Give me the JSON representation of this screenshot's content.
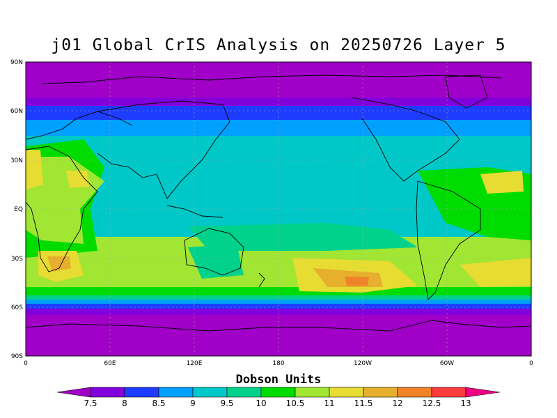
{
  "title": "j01 Global CrIS Analysis on 20250726 Layer 5",
  "lat_ticks": [
    "90N",
    "60N",
    "30N",
    "EQ",
    "30S",
    "60S",
    "90S"
  ],
  "lon_ticks": [
    "0",
    "60E",
    "120E",
    "180",
    "120W",
    "60W",
    "0"
  ],
  "colorbar": {
    "title": "Dobson Units",
    "labels": [
      "7.5",
      "8",
      "8.5",
      "9",
      "9.5",
      "10",
      "10.5",
      "11",
      "11.5",
      "12",
      "12.5",
      "13"
    ],
    "colors": [
      "#a000c8",
      "#8200dc",
      "#1e3cff",
      "#00a0ff",
      "#00c8c8",
      "#00d28c",
      "#00dc00",
      "#a0e632",
      "#e6dc32",
      "#e6af2d",
      "#f08228",
      "#fa3c3c",
      "#f00082"
    ]
  },
  "map_colors": {
    "polar": "#a000c8",
    "band_blue": "#1e3cff",
    "band_cyan": "#00a0ff",
    "teal": "#00c8c8",
    "seagreen": "#00d28c",
    "green": "#00dc00",
    "lime": "#a0e632",
    "yellow": "#e6dc32",
    "orange": "#e6af2d",
    "dark_orange": "#f08228"
  }
}
